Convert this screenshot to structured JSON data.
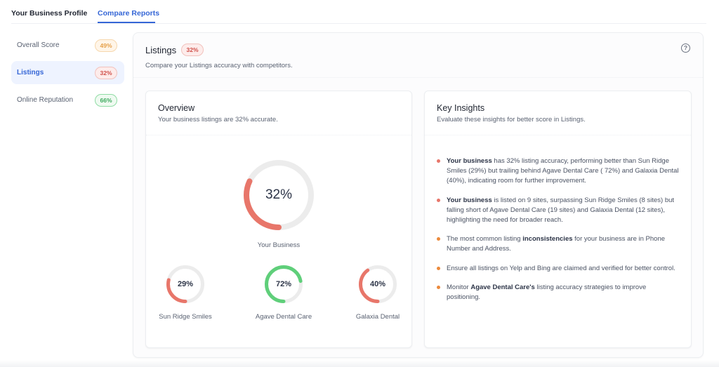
{
  "top_tabs": [
    {
      "label": "Your Business Profile",
      "active": false
    },
    {
      "label": "Compare Reports",
      "active": true
    }
  ],
  "sidebar": {
    "items": [
      {
        "label": "Overall Score",
        "badge": "49%",
        "tone": "orange",
        "active": false
      },
      {
        "label": "Listings",
        "badge": "32%",
        "tone": "red",
        "active": true
      },
      {
        "label": "Online Reputation",
        "badge": "66%",
        "tone": "green",
        "active": false
      }
    ]
  },
  "main": {
    "title": "Listings",
    "badge": "32%",
    "subtitle": "Compare your Listings accuracy with competitors.",
    "help_icon": "question-circle-icon"
  },
  "overview": {
    "title": "Overview",
    "subtitle": "Your business listings are 32% accurate.",
    "primary": {
      "name": "Your Business",
      "value": 32,
      "display": "32%",
      "color": "#e8766a"
    },
    "competitors": [
      {
        "name": "Sun Ridge Smiles",
        "value": 29,
        "display": "29%",
        "color": "#e8766a"
      },
      {
        "name": "Agave Dental Care",
        "value": 72,
        "display": "72%",
        "color": "#5fcf7a"
      },
      {
        "name": "Galaxia Dental",
        "value": 40,
        "display": "40%",
        "color": "#e8766a"
      }
    ],
    "track_color": "#ececec"
  },
  "insights": {
    "title": "Key Insights",
    "subtitle": "Evaluate these insights for better score in Listings.",
    "items": [
      {
        "bullet_color": "#e8766a",
        "parts": [
          {
            "b": "Your business"
          },
          {
            "t": " has 32% listing accuracy, performing better than Sun Ridge Smiles (29%) but trailing behind Agave Dental Care ( 72%) and Galaxia Dental (40%), indicating room for further improvement."
          }
        ]
      },
      {
        "bullet_color": "#e8766a",
        "parts": [
          {
            "b": "Your business"
          },
          {
            "t": " is listed on 9 sites, surpassing Sun Ridge Smiles (8 sites) but falling short of Agave Dental Care (19 sites) and Galaxia Dental (12 sites), highlighting the need for broader reach."
          }
        ]
      },
      {
        "bullet_color": "#ec8a3c",
        "parts": [
          {
            "t": "The most common listing "
          },
          {
            "b": "inconsistencies"
          },
          {
            "t": " for your business are in Phone Number and Address."
          }
        ]
      },
      {
        "bullet_color": "#ec8a3c",
        "parts": [
          {
            "t": "Ensure all listings on Yelp and Bing are claimed and verified for better control."
          }
        ]
      },
      {
        "bullet_color": "#ec8a3c",
        "parts": [
          {
            "t": "Monitor "
          },
          {
            "b": "Agave Dental Care's"
          },
          {
            "t": " listing accuracy strategies to improve positioning."
          }
        ]
      }
    ]
  }
}
